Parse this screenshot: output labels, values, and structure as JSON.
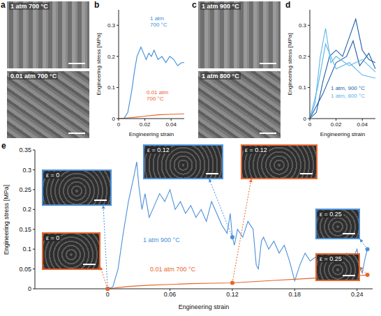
{
  "images": [
    {
      "panel": "a",
      "labels": [
        "1 atm 700 °C",
        "0.01 atm 700 °C"
      ]
    },
    {
      "panel": "c",
      "labels": [
        "1 atm 900 °C",
        "1 atm 800 °C"
      ]
    }
  ],
  "chart_data": [
    {
      "panel": "b",
      "type": "line",
      "x_label": "Engineering strain",
      "y_label": "Engineering stress [MPa]",
      "xlim": [
        0,
        0.05
      ],
      "xticks": [
        0,
        0.02,
        0.04
      ],
      "ylim": [
        0,
        0.35
      ],
      "yticks": [
        0,
        0.1,
        0.2,
        0.3
      ],
      "series": [
        {
          "name": "1 atm 700 °C",
          "color": "#3a8fd9",
          "x": [
            0,
            0.004,
            0.007,
            0.01,
            0.012,
            0.014,
            0.016,
            0.017,
            0.019,
            0.021,
            0.023,
            0.025,
            0.027,
            0.03,
            0.033,
            0.036,
            0.039,
            0.042,
            0.045,
            0.048,
            0.05
          ],
          "values": [
            0,
            0,
            0.02,
            0.09,
            0.15,
            0.2,
            0.22,
            0.23,
            0.21,
            0.19,
            0.21,
            0.2,
            0.22,
            0.19,
            0.2,
            0.18,
            0.2,
            0.19,
            0.17,
            0.18,
            0.18
          ]
        },
        {
          "name": "0.01 atm 700 °C",
          "color": "#e8642c",
          "x": [
            0,
            0.01,
            0.02,
            0.03,
            0.04,
            0.05
          ],
          "values": [
            0,
            0.003,
            0.008,
            0.012,
            0.014,
            0.015
          ]
        }
      ]
    },
    {
      "panel": "d",
      "type": "line",
      "x_label": "Engineering strain",
      "y_label": "Engineering stress [MPa]",
      "xlim": [
        0,
        0.05
      ],
      "xticks": [
        0,
        0.02,
        0.04
      ],
      "ylim": [
        0,
        0.35
      ],
      "yticks": [
        0,
        0.1,
        0.2,
        0.3
      ],
      "series": [
        {
          "name": "1 atm, 900 °C",
          "color": "#1f5fa8",
          "x": [
            0,
            0.005,
            0.01,
            0.015,
            0.02,
            0.025,
            0.03,
            0.035,
            0.04,
            0.045,
            0.05
          ],
          "values": [
            0,
            0.02,
            0.12,
            0.2,
            0.22,
            0.2,
            0.26,
            0.32,
            0.22,
            0.19,
            0.18
          ]
        },
        {
          "name": "1 atm, 900 °C",
          "color": "#1f5fa8",
          "x": [
            0,
            0.01,
            0.02,
            0.028,
            0.033,
            0.038,
            0.045,
            0.05
          ],
          "values": [
            0,
            0.08,
            0.18,
            0.2,
            0.25,
            0.17,
            0.21,
            0.16
          ]
        },
        {
          "name": "1 atm, 800 °C",
          "color": "#5ab4ea",
          "x": [
            0,
            0.004,
            0.008,
            0.012,
            0.016,
            0.02,
            0.03,
            0.04,
            0.05
          ],
          "values": [
            0,
            0.05,
            0.2,
            0.29,
            0.18,
            0.2,
            0.17,
            0.19,
            0.15
          ]
        },
        {
          "name": "1 atm, 800 °C",
          "color": "#5ab4ea",
          "x": [
            0,
            0.006,
            0.012,
            0.02,
            0.03,
            0.04,
            0.05
          ],
          "values": [
            0,
            0.1,
            0.24,
            0.16,
            0.18,
            0.14,
            0.13
          ]
        }
      ]
    },
    {
      "panel": "e",
      "type": "line",
      "x_label": "Engineering strain",
      "y_label": "Engineering stress [MPa]",
      "xlim": [
        -0.07,
        0.255
      ],
      "xticks": [
        0,
        0.06,
        0.12,
        0.18,
        0.24
      ],
      "ylim": [
        0,
        0.35
      ],
      "yticks": [
        0,
        0.05,
        0.1,
        0.15,
        0.2,
        0.25,
        0.3,
        0.35
      ],
      "series": [
        {
          "name": "1 atm 900 °C",
          "color": "#4a90d9",
          "x": [
            0,
            0.005,
            0.01,
            0.015,
            0.02,
            0.025,
            0.028,
            0.03,
            0.033,
            0.036,
            0.04,
            0.045,
            0.05,
            0.055,
            0.06,
            0.065,
            0.07,
            0.075,
            0.08,
            0.085,
            0.09,
            0.095,
            0.1,
            0.105,
            0.11,
            0.115,
            0.118,
            0.12,
            0.122,
            0.125,
            0.13,
            0.135,
            0.14,
            0.143,
            0.145,
            0.148,
            0.15,
            0.155,
            0.16,
            0.165,
            0.17,
            0.175,
            0.18,
            0.185,
            0.19,
            0.195,
            0.2,
            0.205,
            0.21,
            0.215,
            0.22,
            0.225,
            0.23,
            0.235,
            0.24,
            0.243,
            0.245,
            0.248,
            0.25
          ],
          "values": [
            0,
            0.005,
            0.05,
            0.14,
            0.22,
            0.28,
            0.32,
            0.26,
            0.2,
            0.24,
            0.18,
            0.21,
            0.24,
            0.22,
            0.25,
            0.2,
            0.22,
            0.19,
            0.21,
            0.18,
            0.2,
            0.17,
            0.22,
            0.19,
            0.16,
            0.14,
            0.19,
            0.13,
            0.11,
            0.15,
            0.13,
            0.17,
            0.15,
            0.06,
            0.05,
            0.12,
            0.13,
            0.1,
            0.12,
            0.09,
            0.11,
            0.07,
            0.02,
            0.06,
            0.09,
            0.07,
            0.08,
            0.05,
            0.07,
            0.06,
            0.08,
            0.06,
            0.09,
            0.07,
            0.1,
            0.05,
            0.04,
            0.08,
            0.1
          ]
        },
        {
          "name": "0.01 atm 700 °C",
          "color": "#e8642c",
          "x": [
            0,
            0.02,
            0.04,
            0.06,
            0.08,
            0.1,
            0.12,
            0.14,
            0.16,
            0.18,
            0.2,
            0.22,
            0.24,
            0.25
          ],
          "values": [
            0,
            0.006,
            0.009,
            0.011,
            0.013,
            0.014,
            0.015,
            0.018,
            0.021,
            0.024,
            0.027,
            0.03,
            0.033,
            0.035
          ]
        }
      ],
      "annotations": [
        {
          "text": "ε = 0",
          "x": 0,
          "y": 0,
          "series": "1 atm 900 °C"
        },
        {
          "text": "ε = 0.12",
          "x": 0.12,
          "y": 0.13,
          "series": "1 atm 900 °C"
        },
        {
          "text": "ε = 0.25",
          "x": 0.25,
          "y": 0.1,
          "series": "1 atm 900 °C"
        },
        {
          "text": "ε = 0",
          "x": 0,
          "y": 0,
          "series": "0.01 atm 700 °C"
        },
        {
          "text": "ε = 0.12",
          "x": 0.12,
          "y": 0.015,
          "series": "0.01 atm 700 °C"
        },
        {
          "text": "ε = 0.25",
          "x": 0.25,
          "y": 0.035,
          "series": "0.01 atm 700 °C"
        }
      ]
    }
  ]
}
